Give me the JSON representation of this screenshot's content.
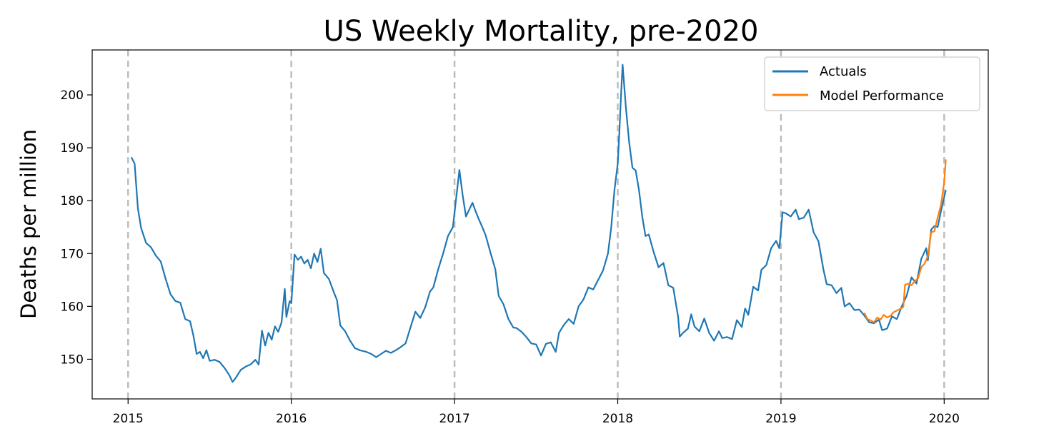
{
  "chart_data": {
    "type": "line",
    "title": "US Weekly Mortality, pre-2020",
    "xlabel": "",
    "ylabel": "Deaths per million",
    "xlim": [
      2014.78,
      2020.27
    ],
    "ylim": [
      142.5,
      208.5
    ],
    "x_ticks": [
      2015,
      2016,
      2017,
      2018,
      2019,
      2020
    ],
    "x_tick_labels": [
      "2015",
      "2016",
      "2017",
      "2018",
      "2019",
      "2020"
    ],
    "y_ticks": [
      150,
      160,
      170,
      180,
      190,
      200
    ],
    "y_tick_labels": [
      "150",
      "160",
      "170",
      "180",
      "190",
      "200"
    ],
    "vlines": [
      2015,
      2016,
      2017,
      2018,
      2019,
      2020
    ],
    "grid": false,
    "legend": {
      "position": "top-right",
      "entries": [
        "Actuals",
        "Model Performance"
      ]
    },
    "series": [
      {
        "name": "Actuals",
        "color": "#1f77b4",
        "points": [
          [
            2015.02,
            188.2
          ],
          [
            2015.04,
            187.0
          ],
          [
            2015.06,
            178.5
          ],
          [
            2015.08,
            174.8
          ],
          [
            2015.11,
            172.0
          ],
          [
            2015.14,
            171.2
          ],
          [
            2015.17,
            169.6
          ],
          [
            2015.2,
            168.5
          ],
          [
            2015.23,
            165.2
          ],
          [
            2015.26,
            162.3
          ],
          [
            2015.29,
            161.0
          ],
          [
            2015.32,
            160.7
          ],
          [
            2015.35,
            157.6
          ],
          [
            2015.38,
            157.2
          ],
          [
            2015.4,
            154.5
          ],
          [
            2015.42,
            151.0
          ],
          [
            2015.44,
            151.4
          ],
          [
            2015.46,
            150.2
          ],
          [
            2015.48,
            151.7
          ],
          [
            2015.5,
            149.7
          ],
          [
            2015.53,
            149.9
          ],
          [
            2015.56,
            149.5
          ],
          [
            2015.59,
            148.4
          ],
          [
            2015.62,
            147.0
          ],
          [
            2015.64,
            145.7
          ],
          [
            2015.66,
            146.5
          ],
          [
            2015.69,
            148.0
          ],
          [
            2015.72,
            148.6
          ],
          [
            2015.75,
            149.0
          ],
          [
            2015.78,
            149.9
          ],
          [
            2015.8,
            149.0
          ],
          [
            2015.82,
            155.4
          ],
          [
            2015.84,
            152.6
          ],
          [
            2015.86,
            155.0
          ],
          [
            2015.88,
            153.7
          ],
          [
            2015.9,
            156.2
          ],
          [
            2015.92,
            155.2
          ],
          [
            2015.94,
            157.0
          ],
          [
            2015.96,
            163.3
          ],
          [
            2015.97,
            158.0
          ],
          [
            2015.99,
            161.0
          ],
          [
            2016.0,
            160.6
          ],
          [
            2016.02,
            169.8
          ],
          [
            2016.04,
            168.8
          ],
          [
            2016.06,
            169.4
          ],
          [
            2016.08,
            168.1
          ],
          [
            2016.1,
            168.8
          ],
          [
            2016.12,
            167.2
          ],
          [
            2016.14,
            170.0
          ],
          [
            2016.16,
            168.4
          ],
          [
            2016.18,
            170.9
          ],
          [
            2016.2,
            166.3
          ],
          [
            2016.23,
            165.2
          ],
          [
            2016.26,
            162.7
          ],
          [
            2016.28,
            161.2
          ],
          [
            2016.3,
            156.4
          ],
          [
            2016.33,
            155.3
          ],
          [
            2016.36,
            153.5
          ],
          [
            2016.39,
            152.1
          ],
          [
            2016.42,
            151.7
          ],
          [
            2016.46,
            151.4
          ],
          [
            2016.49,
            151.0
          ],
          [
            2016.52,
            150.4
          ],
          [
            2016.55,
            151.0
          ],
          [
            2016.58,
            151.6
          ],
          [
            2016.61,
            151.2
          ],
          [
            2016.64,
            151.7
          ],
          [
            2016.67,
            152.3
          ],
          [
            2016.7,
            153.0
          ],
          [
            2016.73,
            156.0
          ],
          [
            2016.76,
            159.0
          ],
          [
            2016.79,
            157.8
          ],
          [
            2016.82,
            159.8
          ],
          [
            2016.85,
            162.8
          ],
          [
            2016.87,
            163.6
          ],
          [
            2016.9,
            167.0
          ],
          [
            2016.93,
            170.0
          ],
          [
            2016.96,
            173.3
          ],
          [
            2016.99,
            175.0
          ],
          [
            2017.01,
            180.5
          ],
          [
            2017.03,
            185.8
          ],
          [
            2017.05,
            181.0
          ],
          [
            2017.07,
            177.0
          ],
          [
            2017.09,
            178.3
          ],
          [
            2017.11,
            179.6
          ],
          [
            2017.13,
            177.9
          ],
          [
            2017.15,
            176.4
          ],
          [
            2017.17,
            175.0
          ],
          [
            2017.19,
            173.5
          ],
          [
            2017.22,
            170.2
          ],
          [
            2017.25,
            167.0
          ],
          [
            2017.27,
            162.0
          ],
          [
            2017.3,
            160.4
          ],
          [
            2017.33,
            157.6
          ],
          [
            2017.36,
            156.0
          ],
          [
            2017.38,
            155.9
          ],
          [
            2017.41,
            155.2
          ],
          [
            2017.44,
            154.2
          ],
          [
            2017.47,
            153.0
          ],
          [
            2017.5,
            152.8
          ],
          [
            2017.53,
            150.7
          ],
          [
            2017.56,
            152.9
          ],
          [
            2017.59,
            153.2
          ],
          [
            2017.62,
            151.4
          ],
          [
            2017.64,
            155.0
          ],
          [
            2017.67,
            156.5
          ],
          [
            2017.7,
            157.6
          ],
          [
            2017.73,
            156.7
          ],
          [
            2017.76,
            160.0
          ],
          [
            2017.79,
            161.3
          ],
          [
            2017.82,
            163.6
          ],
          [
            2017.85,
            163.2
          ],
          [
            2017.88,
            165.0
          ],
          [
            2017.91,
            166.8
          ],
          [
            2017.94,
            170.0
          ],
          [
            2017.96,
            175.0
          ],
          [
            2017.98,
            182.0
          ],
          [
            2018.0,
            187.0
          ],
          [
            2018.01,
            193.0
          ],
          [
            2018.02,
            200.0
          ],
          [
            2018.03,
            205.7
          ],
          [
            2018.05,
            197.6
          ],
          [
            2018.07,
            191.0
          ],
          [
            2018.09,
            186.2
          ],
          [
            2018.11,
            185.7
          ],
          [
            2018.13,
            182.0
          ],
          [
            2018.15,
            177.0
          ],
          [
            2018.17,
            173.3
          ],
          [
            2018.19,
            173.6
          ],
          [
            2018.22,
            170.3
          ],
          [
            2018.25,
            167.4
          ],
          [
            2018.28,
            168.2
          ],
          [
            2018.31,
            164.0
          ],
          [
            2018.34,
            163.5
          ],
          [
            2018.37,
            158.0
          ],
          [
            2018.38,
            154.3
          ],
          [
            2018.4,
            155.0
          ],
          [
            2018.43,
            155.8
          ],
          [
            2018.45,
            158.5
          ],
          [
            2018.47,
            156.2
          ],
          [
            2018.5,
            155.3
          ],
          [
            2018.53,
            157.7
          ],
          [
            2018.56,
            155.0
          ],
          [
            2018.59,
            153.5
          ],
          [
            2018.62,
            155.3
          ],
          [
            2018.64,
            154.0
          ],
          [
            2018.67,
            154.2
          ],
          [
            2018.7,
            153.8
          ],
          [
            2018.73,
            157.4
          ],
          [
            2018.76,
            156.1
          ],
          [
            2018.78,
            159.6
          ],
          [
            2018.8,
            158.4
          ],
          [
            2018.83,
            163.7
          ],
          [
            2018.86,
            163.0
          ],
          [
            2018.88,
            166.9
          ],
          [
            2018.91,
            167.8
          ],
          [
            2018.94,
            171.0
          ],
          [
            2018.97,
            172.4
          ],
          [
            2018.99,
            171.0
          ],
          [
            2019.01,
            177.8
          ],
          [
            2019.03,
            177.6
          ],
          [
            2019.06,
            177.0
          ],
          [
            2019.09,
            178.3
          ],
          [
            2019.11,
            176.5
          ],
          [
            2019.14,
            176.8
          ],
          [
            2019.17,
            178.3
          ],
          [
            2019.2,
            174.0
          ],
          [
            2019.23,
            172.3
          ],
          [
            2019.26,
            167.0
          ],
          [
            2019.28,
            164.2
          ],
          [
            2019.31,
            164.0
          ],
          [
            2019.34,
            162.5
          ],
          [
            2019.37,
            163.5
          ],
          [
            2019.39,
            160.0
          ],
          [
            2019.42,
            160.6
          ],
          [
            2019.45,
            159.3
          ],
          [
            2019.48,
            159.4
          ],
          [
            2019.51,
            158.3
          ],
          [
            2019.54,
            157.0
          ],
          [
            2019.57,
            156.8
          ],
          [
            2019.6,
            157.5
          ],
          [
            2019.62,
            155.5
          ],
          [
            2019.65,
            155.8
          ],
          [
            2019.68,
            158.1
          ],
          [
            2019.71,
            157.6
          ],
          [
            2019.74,
            160.0
          ],
          [
            2019.77,
            162.0
          ],
          [
            2019.8,
            165.5
          ],
          [
            2019.83,
            164.3
          ],
          [
            2019.86,
            169.0
          ],
          [
            2019.89,
            171.0
          ],
          [
            2019.9,
            168.7
          ],
          [
            2019.92,
            174.5
          ],
          [
            2019.94,
            175.2
          ],
          [
            2019.96,
            175.0
          ],
          [
            2019.98,
            178.0
          ],
          [
            2020.01,
            182.0
          ]
        ]
      },
      {
        "name": "Model Performance",
        "color": "#ff7f0e",
        "points": [
          [
            2019.51,
            158.8
          ],
          [
            2019.53,
            157.6
          ],
          [
            2019.55,
            157.3
          ],
          [
            2019.57,
            157.0
          ],
          [
            2019.59,
            157.9
          ],
          [
            2019.61,
            157.5
          ],
          [
            2019.63,
            158.4
          ],
          [
            2019.65,
            157.9
          ],
          [
            2019.67,
            158.2
          ],
          [
            2019.69,
            158.9
          ],
          [
            2019.71,
            159.2
          ],
          [
            2019.73,
            159.5
          ],
          [
            2019.75,
            159.9
          ],
          [
            2019.76,
            164.1
          ],
          [
            2019.78,
            164.3
          ],
          [
            2019.8,
            164.0
          ],
          [
            2019.82,
            164.8
          ],
          [
            2019.84,
            165.3
          ],
          [
            2019.86,
            167.4
          ],
          [
            2019.88,
            168.1
          ],
          [
            2019.9,
            169.5
          ],
          [
            2019.92,
            174.0
          ],
          [
            2019.94,
            174.2
          ],
          [
            2019.96,
            176.8
          ],
          [
            2019.98,
            179.2
          ],
          [
            2020.0,
            183.4
          ],
          [
            2020.01,
            187.8
          ]
        ]
      }
    ]
  }
}
